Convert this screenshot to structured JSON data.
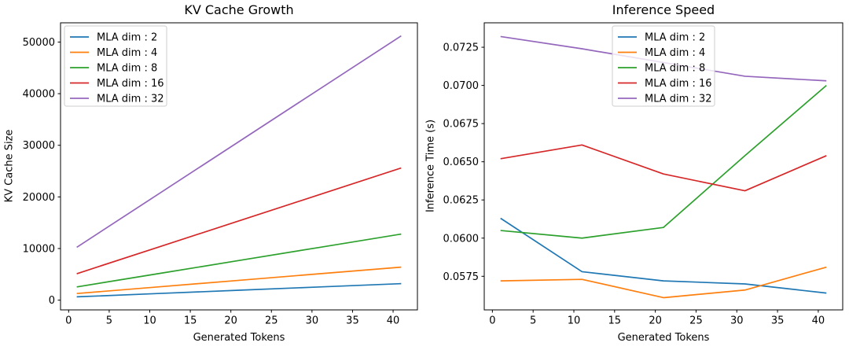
{
  "figure": {
    "background": "#ffffff",
    "text_color": "#000000",
    "frame_color": "#000000"
  },
  "chart_data": [
    {
      "type": "line",
      "title": "KV Cache Growth",
      "xlabel": "Generated Tokens",
      "ylabel": "KV Cache Size",
      "x": [
        1,
        11,
        21,
        31,
        41
      ],
      "series": [
        {
          "name": "MLA dim : 2",
          "color": "#1f77b4",
          "values": [
            640,
            1280,
            1920,
            2560,
            3200
          ]
        },
        {
          "name": "MLA dim : 4",
          "color": "#ff7f0e",
          "values": [
            1280,
            2560,
            3840,
            5120,
            6400
          ]
        },
        {
          "name": "MLA dim : 8",
          "color": "#2ca02c",
          "values": [
            2560,
            5120,
            7680,
            10240,
            12800
          ]
        },
        {
          "name": "MLA dim : 16",
          "color": "#d62728",
          "values": [
            5120,
            10240,
            15360,
            20480,
            25600
          ]
        },
        {
          "name": "MLA dim : 32",
          "color": "#9467bd",
          "values": [
            10240,
            20480,
            30720,
            40960,
            51200
          ]
        }
      ],
      "xlim": [
        -1,
        43
      ],
      "ylim": [
        -1888,
        53728
      ],
      "xticks": [
        0,
        5,
        10,
        15,
        20,
        25,
        30,
        35,
        40
      ],
      "xtick_labels": [
        "0",
        "5",
        "10",
        "15",
        "20",
        "25",
        "30",
        "35",
        "40"
      ],
      "yticks": [
        0,
        10000,
        20000,
        30000,
        40000,
        50000
      ],
      "ytick_labels": [
        "0",
        "10000",
        "20000",
        "30000",
        "40000",
        "50000"
      ],
      "legend_position": "upper-left",
      "grid": false
    },
    {
      "type": "line",
      "title": "Inference Speed",
      "xlabel": "Generated Tokens",
      "ylabel": "Inference Time (s)",
      "x": [
        1,
        11,
        21,
        31,
        41
      ],
      "series": [
        {
          "name": "MLA dim : 2",
          "color": "#1f77b4",
          "values": [
            0.0613,
            0.0578,
            0.0572,
            0.057,
            0.0564
          ]
        },
        {
          "name": "MLA dim : 4",
          "color": "#ff7f0e",
          "values": [
            0.0572,
            0.0573,
            0.0561,
            0.0566,
            0.0581
          ]
        },
        {
          "name": "MLA dim : 8",
          "color": "#2ca02c",
          "values": [
            0.0605,
            0.06,
            0.0607,
            0.0654,
            0.07
          ]
        },
        {
          "name": "MLA dim : 16",
          "color": "#d62728",
          "values": [
            0.0652,
            0.0661,
            0.0642,
            0.0631,
            0.0654
          ]
        },
        {
          "name": "MLA dim : 32",
          "color": "#9467bd",
          "values": [
            0.0732,
            0.0724,
            0.0715,
            0.0706,
            0.0703
          ]
        }
      ],
      "xlim": [
        -1,
        43
      ],
      "ylim": [
        0.0553,
        0.0741
      ],
      "xticks": [
        0,
        5,
        10,
        15,
        20,
        25,
        30,
        35,
        40
      ],
      "xtick_labels": [
        "0",
        "5",
        "10",
        "15",
        "20",
        "25",
        "30",
        "35",
        "40"
      ],
      "yticks": [
        0.0575,
        0.06,
        0.0625,
        0.065,
        0.0675,
        0.07,
        0.0725
      ],
      "ytick_labels": [
        "0.0575",
        "0.0600",
        "0.0625",
        "0.0650",
        "0.0675",
        "0.0700",
        "0.0725"
      ],
      "legend_position": "upper-center",
      "grid": false
    }
  ]
}
